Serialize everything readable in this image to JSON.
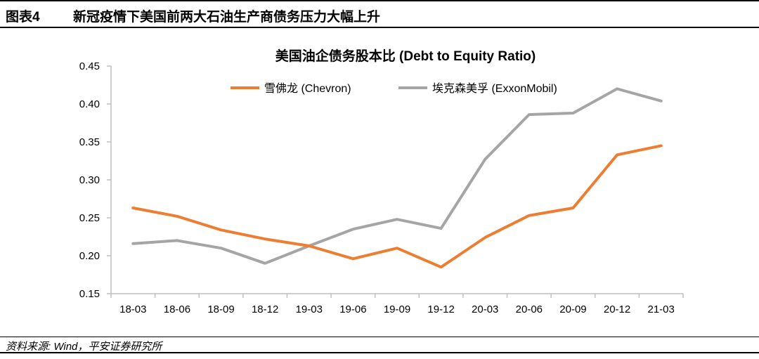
{
  "header": {
    "figure_label": "图表4",
    "figure_title": "新冠疫情下美国前两大石油生产商债务压力大幅上升"
  },
  "source": "资料来源: Wind，平安证券研究所",
  "colors": {
    "chevron": "#ED7D31",
    "exxon": "#A5A5A5",
    "axis": "#BFBFBF"
  },
  "chart_data": {
    "type": "line",
    "title": "美国油企债务股本比 (Debt to Equity Ratio)",
    "xlabel": "",
    "ylabel": "",
    "categories": [
      "18-03",
      "18-06",
      "18-09",
      "18-12",
      "19-03",
      "19-06",
      "19-09",
      "19-12",
      "20-03",
      "20-06",
      "20-09",
      "20-12",
      "21-03"
    ],
    "ylim": [
      0.15,
      0.45
    ],
    "yticks": [
      "0.15",
      "0.20",
      "0.25",
      "0.30",
      "0.35",
      "0.40",
      "0.45"
    ],
    "grid": false,
    "legend_position": "top",
    "series": [
      {
        "name": "雪佛龙 (Chevron)",
        "values": [
          0.263,
          0.252,
          0.234,
          0.222,
          0.213,
          0.196,
          0.21,
          0.185,
          0.224,
          0.253,
          0.263,
          0.333,
          0.345
        ]
      },
      {
        "name": "埃克森美孚 (ExxonMobil)",
        "values": [
          0.216,
          0.22,
          0.21,
          0.19,
          0.213,
          0.235,
          0.248,
          0.236,
          0.327,
          0.386,
          0.388,
          0.42,
          0.404
        ]
      }
    ]
  }
}
